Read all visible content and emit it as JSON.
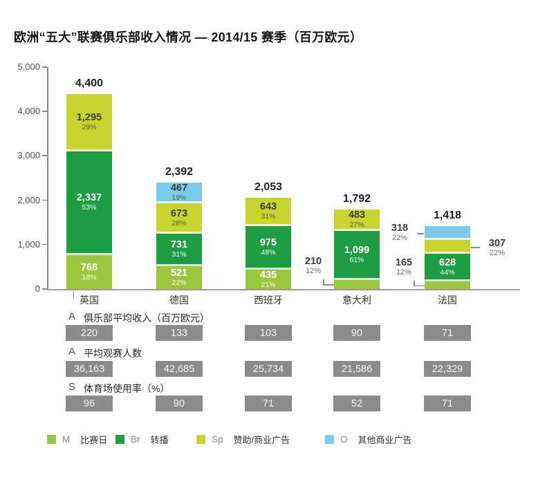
{
  "chart_data": {
    "type": "stacked-bar",
    "title": "欧洲“五大”联赛俱乐部收入情况 — 2014/15 赛季（百万欧元）",
    "unit": "百万欧元",
    "ylim": [
      0,
      5000
    ],
    "yticks": [
      0,
      1000,
      2000,
      3000,
      4000,
      5000
    ],
    "ytick_labels": [
      "0",
      "1,000",
      "2,000",
      "3,000",
      "4,000",
      "5,000"
    ],
    "grid": false,
    "legend_position": "bottom",
    "categories": [
      "英国",
      "德国",
      "西班牙",
      "意大利",
      "法国"
    ],
    "totals": [
      4400,
      2392,
      2053,
      1792,
      1418
    ],
    "colors": {
      "matchday": "#9cc63e",
      "broadcast": "#1f9d45",
      "sponsorship": "#c6d42d",
      "other": "#7ccbe8"
    },
    "bars": [
      {
        "country": "英国",
        "total": 4400,
        "total_label": "4,400",
        "segments": [
          {
            "key": "matchday",
            "value": 768,
            "label": "768",
            "pct": "18%",
            "label_mode": "inside",
            "text": "light"
          },
          {
            "key": "broadcast",
            "value": 2337,
            "label": "2,337",
            "pct": "53%",
            "label_mode": "inside",
            "text": "light"
          },
          {
            "key": "sponsorship",
            "value": 1295,
            "label": "1,295",
            "pct": "29%",
            "label_mode": "inside",
            "text": "dark"
          }
        ]
      },
      {
        "country": "德国",
        "total": 2392,
        "total_label": "2,392",
        "segments": [
          {
            "key": "matchday",
            "value": 521,
            "label": "521",
            "pct": "22%",
            "label_mode": "inside",
            "text": "light"
          },
          {
            "key": "broadcast",
            "value": 731,
            "label": "731",
            "pct": "31%",
            "label_mode": "inside",
            "text": "light"
          },
          {
            "key": "sponsorship",
            "value": 673,
            "label": "673",
            "pct": "28%",
            "label_mode": "inside",
            "text": "dark"
          },
          {
            "key": "other",
            "value": 467,
            "label": "467",
            "pct": "19%",
            "label_mode": "inside",
            "text": "dark"
          }
        ]
      },
      {
        "country": "西班牙",
        "total": 2053,
        "total_label": "2,053",
        "segments": [
          {
            "key": "matchday",
            "value": 435,
            "label": "435",
            "pct": "21%",
            "label_mode": "inside",
            "text": "light"
          },
          {
            "key": "broadcast",
            "value": 975,
            "label": "975",
            "pct": "48%",
            "label_mode": "inside",
            "text": "light"
          },
          {
            "key": "sponsorship",
            "value": 643,
            "label": "643",
            "pct": "31%",
            "label_mode": "inside",
            "text": "dark"
          }
        ]
      },
      {
        "country": "意大利",
        "total": 1792,
        "total_label": "1,792",
        "segments": [
          {
            "key": "matchday",
            "value": 210,
            "label": "210",
            "pct": "12%",
            "label_mode": "out-left-elbow",
            "text": "dark"
          },
          {
            "key": "broadcast",
            "value": 1099,
            "label": "1,099",
            "pct": "61%",
            "label_mode": "inside",
            "text": "light"
          },
          {
            "key": "sponsorship",
            "value": 483,
            "label": "483",
            "pct": "27%",
            "label_mode": "inside",
            "text": "dark"
          }
        ]
      },
      {
        "country": "法国",
        "total": 1418,
        "total_label": "1,418",
        "segments": [
          {
            "key": "matchday",
            "value": 165,
            "label": "165",
            "pct": "12%",
            "label_mode": "out-left-elbow",
            "text": "dark"
          },
          {
            "key": "broadcast",
            "value": 628,
            "label": "628",
            "pct": "44%",
            "label_mode": "inside",
            "text": "light"
          },
          {
            "key": "sponsorship",
            "value": 307,
            "label": "307",
            "pct": "22%",
            "label_mode": "out-right",
            "text": "dark"
          },
          {
            "key": "other",
            "value": 318,
            "label": "318",
            "pct": "22%",
            "label_mode": "out-left",
            "text": "dark"
          }
        ]
      }
    ],
    "legend": [
      {
        "abbr": "M",
        "label": "比赛日",
        "key": "matchday"
      },
      {
        "abbr": "Br",
        "label": "转播",
        "key": "broadcast"
      },
      {
        "abbr": "Sp",
        "label": "赞助/商业广告",
        "key": "sponsorship"
      },
      {
        "abbr": "O",
        "label": "其他商业广告",
        "key": "other"
      }
    ]
  },
  "stats": {
    "rows": [
      {
        "prefix": "A",
        "label": "俱乐部平均收入（百万欧元）",
        "values": [
          "220",
          "133",
          "103",
          "90",
          "71"
        ]
      },
      {
        "prefix": "A",
        "label": "平均观赛人数",
        "values": [
          "36,163",
          "42,685",
          "25,734",
          "21,586",
          "22,329"
        ]
      },
      {
        "prefix": "S",
        "label": "体育场使用率（%）",
        "values": [
          "96",
          "90",
          "71",
          "52",
          "71"
        ]
      }
    ]
  }
}
